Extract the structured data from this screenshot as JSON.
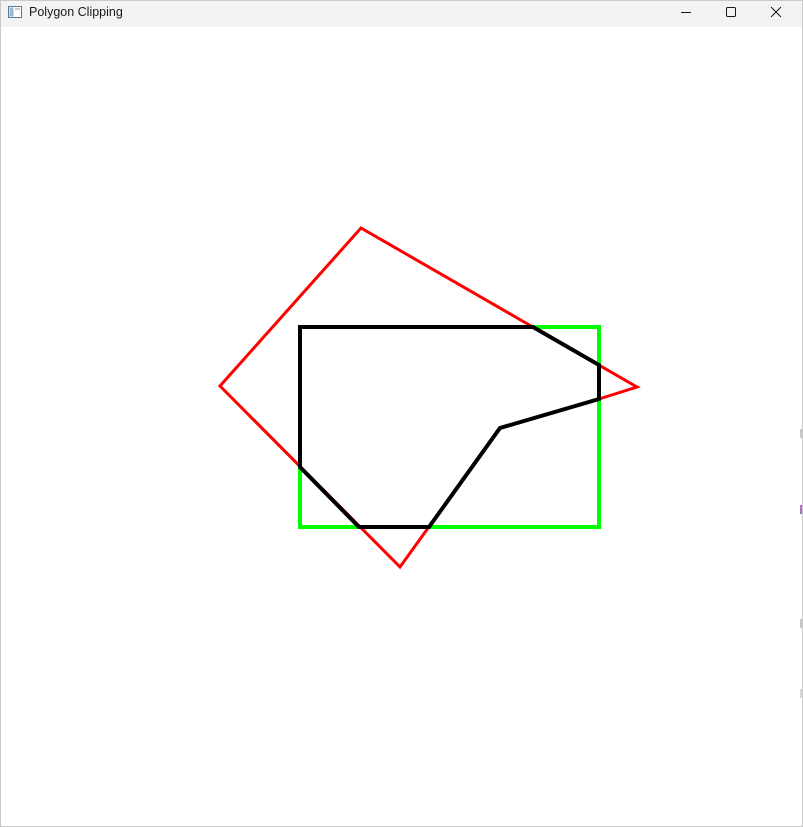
{
  "window": {
    "title": "Polygon Clipping",
    "app_icon": "window-app-icon",
    "controls": {
      "minimize_icon": "minimize-icon",
      "maximize_icon": "maximize-icon",
      "close_icon": "close-icon"
    }
  },
  "colors": {
    "subject_polygon": "#ff0000",
    "clip_window": "#00ff00",
    "clipped_result": "#000000",
    "titlebar": "#f3f3f3",
    "canvas": "#ffffff"
  }
}
